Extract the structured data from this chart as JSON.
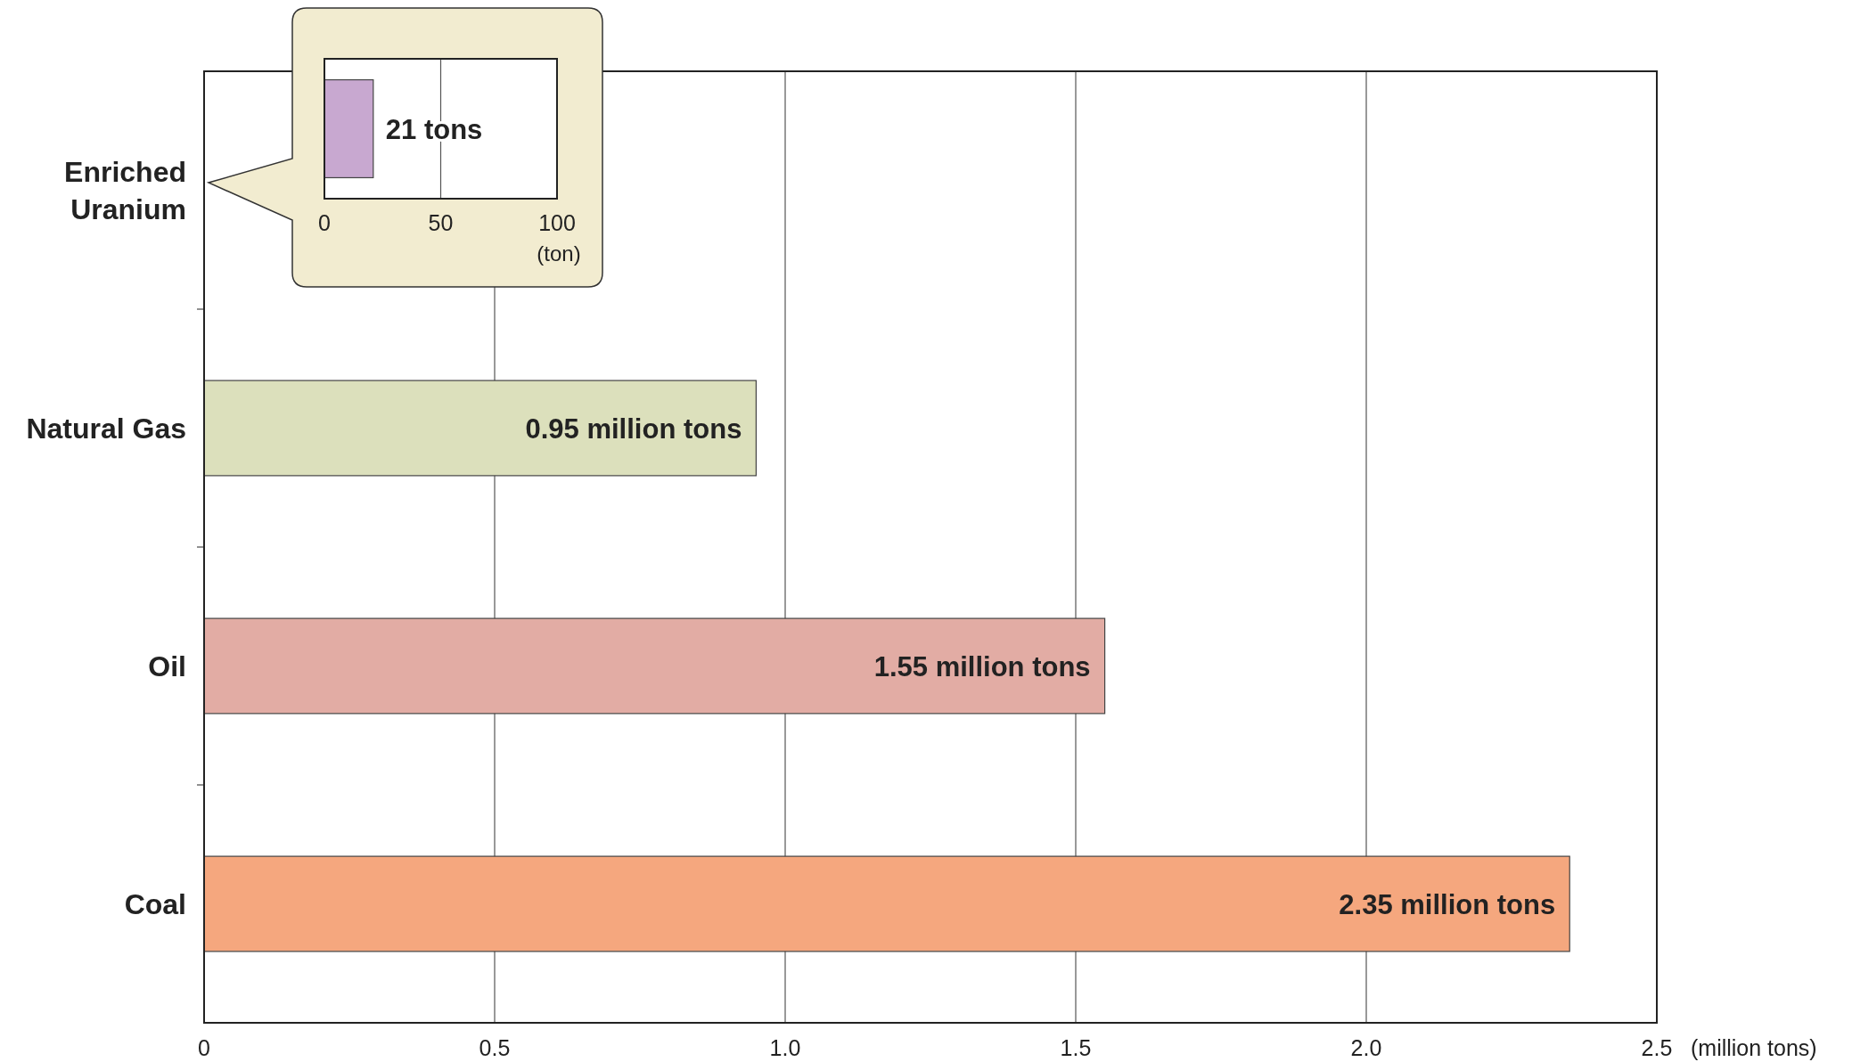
{
  "chart_data": [
    {
      "type": "bar",
      "orientation": "horizontal",
      "categories": [
        "Enriched Uranium",
        "Natural Gas",
        "Oil",
        "Coal"
      ],
      "values": [
        null,
        0.95,
        1.55,
        2.35
      ],
      "colors": [
        null,
        "#dce0bc",
        "#e2aca4",
        "#f5a77e"
      ],
      "value_labels": [
        null,
        "0.95 million tons",
        "1.55 million tons",
        "2.35 million tons"
      ],
      "xlim": [
        0,
        2.5
      ],
      "xticks": [
        0,
        0.5,
        {
          "value": 1,
          "label": "1.0"
        },
        1.5,
        {
          "value": 2,
          "label": "2.0"
        },
        2.5
      ],
      "xlabel": "(million tons)",
      "grid": "x"
    },
    {
      "type": "bar",
      "orientation": "horizontal",
      "categories": [
        null
      ],
      "values": [
        21
      ],
      "colors": [
        "#c8a8d0"
      ],
      "value_labels": [
        "21 tons"
      ],
      "xlim": [
        0,
        100
      ],
      "xticks": [
        0,
        50,
        100
      ],
      "xlabel": "(ton)",
      "grid": "x"
    }
  ]
}
